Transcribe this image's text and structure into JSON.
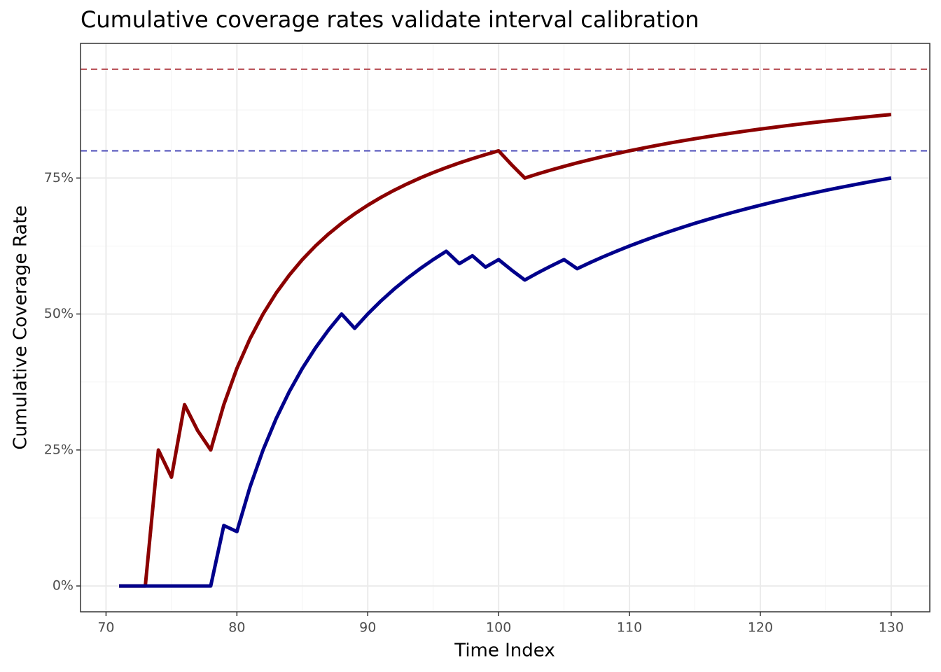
{
  "chart_data": {
    "type": "line",
    "title": "Cumulative coverage rates validate interval calibration",
    "x_label": "Time Index",
    "y_label": "Cumulative Coverage Rate",
    "x": [
      71,
      72,
      73,
      74,
      75,
      76,
      77,
      78,
      79,
      80,
      81,
      82,
      83,
      84,
      85,
      86,
      87,
      88,
      89,
      90,
      91,
      92,
      93,
      94,
      95,
      96,
      97,
      98,
      99,
      100,
      101,
      102,
      103,
      104,
      105,
      106,
      107,
      108,
      109,
      110,
      111,
      112,
      113,
      114,
      115,
      116,
      117,
      118,
      119,
      120,
      121,
      122,
      123,
      124,
      125,
      126,
      127,
      128,
      129,
      130
    ],
    "series": [
      {
        "color": "#8b0000",
        "values": [
          0,
          0,
          0,
          25,
          20,
          33.33,
          28.57,
          25,
          33.33,
          40,
          45.45,
          50,
          53.85,
          57.14,
          60,
          62.5,
          64.71,
          66.67,
          68.42,
          70,
          71.43,
          72.73,
          73.91,
          75,
          76,
          76.92,
          77.78,
          78.57,
          79.31,
          80,
          77.42,
          75,
          75.76,
          76.47,
          77.14,
          77.78,
          78.38,
          78.95,
          79.49,
          80,
          80.49,
          80.95,
          81.4,
          81.82,
          82.22,
          82.61,
          82.98,
          83.33,
          83.67,
          84,
          84.31,
          84.62,
          84.91,
          85.19,
          85.45,
          85.71,
          85.96,
          86.21,
          86.44,
          86.67
        ]
      },
      {
        "color": "#00008b",
        "values": [
          0,
          0,
          0,
          0,
          0,
          0,
          0,
          0,
          11.11,
          10,
          18.18,
          25,
          30.77,
          35.71,
          40,
          43.75,
          47.06,
          50,
          47.37,
          50,
          52.38,
          54.55,
          56.52,
          58.33,
          60,
          61.54,
          59.26,
          60.71,
          58.62,
          60,
          58.06,
          56.25,
          57.58,
          58.82,
          60,
          58.33,
          59.46,
          60.53,
          61.54,
          62.5,
          63.41,
          64.29,
          65.12,
          65.91,
          66.67,
          67.39,
          68.09,
          68.75,
          69.39,
          70,
          70.59,
          71.15,
          71.7,
          72.22,
          72.73,
          73.21,
          73.68,
          74.14,
          74.58,
          75
        ]
      }
    ],
    "reference_lines": [
      {
        "value": 95,
        "color": "#b5474f"
      },
      {
        "value": 80,
        "color": "#4b4bb8"
      }
    ],
    "xlim": [
      68.05,
      132.95
    ],
    "xticks": [
      70,
      80,
      90,
      100,
      110,
      120,
      130
    ],
    "ylim": [
      -4.75,
      99.75
    ],
    "yticks": [
      {
        "value": 0,
        "label": "0%"
      },
      {
        "value": 25,
        "label": "25%"
      },
      {
        "value": 50,
        "label": "50%"
      },
      {
        "value": 75,
        "label": "75%"
      }
    ],
    "grid": true
  }
}
